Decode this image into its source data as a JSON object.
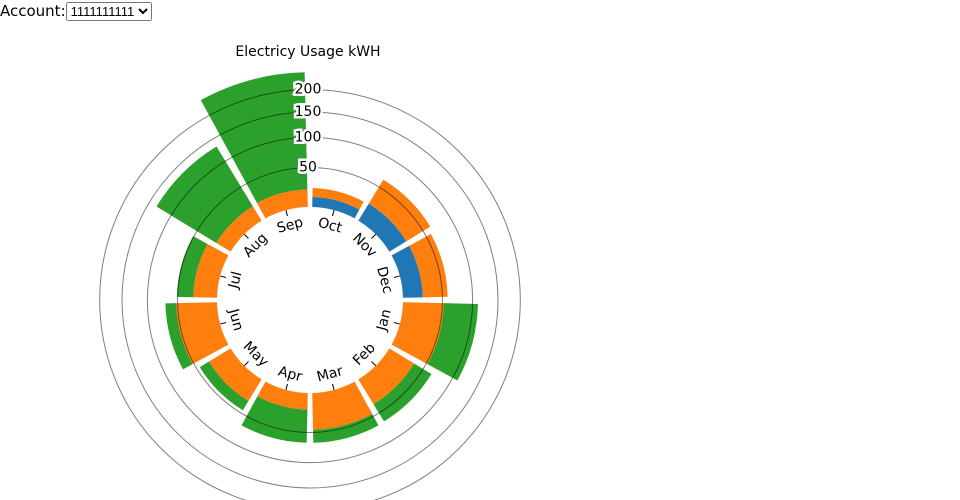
{
  "account_label": "Account:",
  "account_options": [
    "1111111111"
  ],
  "chart_data": {
    "type": "radial-stacked-bar",
    "title": "Electricy Usage kWH",
    "categories": [
      "Oct",
      "Nov",
      "Dec",
      "Jan",
      "Feb",
      "Mar",
      "Apr",
      "May",
      "Jun",
      "Jul",
      "Aug",
      "Sep"
    ],
    "series": [
      {
        "color": "#1f77b4",
        "values": [
          11,
          23,
          23,
          0,
          0,
          0,
          0,
          0,
          0,
          0,
          0,
          0
        ]
      },
      {
        "color": "#ff7f0e",
        "values": [
          11,
          40,
          35,
          52,
          35,
          46,
          19,
          30,
          52,
          28,
          19,
          20
        ]
      },
      {
        "color": "#2ca02c",
        "values": [
          0,
          0,
          0,
          58,
          30,
          20,
          47,
          15,
          17,
          23,
          114,
          223
        ]
      }
    ],
    "ylim": [
      0,
      250
    ],
    "yticks": [
      50,
      100,
      150,
      200
    ],
    "grid": true
  }
}
